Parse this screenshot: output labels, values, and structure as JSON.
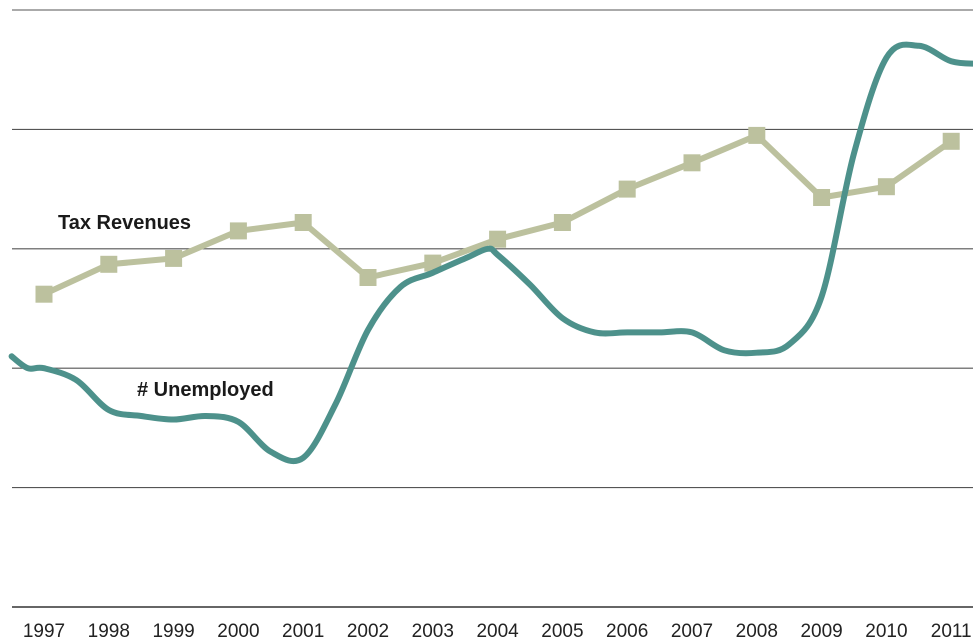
{
  "chart_data": {
    "type": "line",
    "title": "",
    "xlabel": "",
    "ylabel": "",
    "categories": [
      "1997",
      "1998",
      "1999",
      "2000",
      "2001",
      "2002",
      "2003",
      "2004",
      "2005",
      "2006",
      "2007",
      "2008",
      "2009",
      "2010",
      "2011"
    ],
    "xlim": [
      1996.5,
      2011.4
    ],
    "ylim": [
      0,
      5
    ],
    "grid": true,
    "ytick_labels_visible": false,
    "series": [
      {
        "name": "Tax Revenues",
        "color": "#bcc19e",
        "marker": "square",
        "interpolation": "linear",
        "points": [
          [
            1997,
            2.62
          ],
          [
            1998,
            2.87
          ],
          [
            1999,
            2.92
          ],
          [
            2000,
            3.15
          ],
          [
            2001,
            3.22
          ],
          [
            2002,
            2.76
          ],
          [
            2003,
            2.88
          ],
          [
            2004,
            3.08
          ],
          [
            2005,
            3.22
          ],
          [
            2006,
            3.5
          ],
          [
            2007,
            3.72
          ],
          [
            2008,
            3.95
          ],
          [
            2009,
            3.43
          ],
          [
            2010,
            3.52
          ],
          [
            2011,
            3.9
          ]
        ]
      },
      {
        "name": "# Unemployed",
        "color": "#4d918b",
        "marker": "none",
        "interpolation": "smooth",
        "points": [
          [
            1996.5,
            2.1
          ],
          [
            1996.75,
            2.0
          ],
          [
            1997,
            2.0
          ],
          [
            1997.5,
            1.9
          ],
          [
            1998,
            1.65
          ],
          [
            1998.5,
            1.6
          ],
          [
            1999,
            1.57
          ],
          [
            1999.5,
            1.6
          ],
          [
            2000,
            1.55
          ],
          [
            2000.5,
            1.3
          ],
          [
            2001,
            1.25
          ],
          [
            2001.5,
            1.7
          ],
          [
            2002,
            2.32
          ],
          [
            2002.5,
            2.68
          ],
          [
            2003,
            2.8
          ],
          [
            2003.5,
            2.92
          ],
          [
            2003.85,
            3.0
          ],
          [
            2004,
            2.95
          ],
          [
            2004.5,
            2.7
          ],
          [
            2005,
            2.42
          ],
          [
            2005.5,
            2.3
          ],
          [
            2006,
            2.3
          ],
          [
            2006.5,
            2.3
          ],
          [
            2007,
            2.3
          ],
          [
            2007.5,
            2.15
          ],
          [
            2008,
            2.13
          ],
          [
            2008.5,
            2.2
          ],
          [
            2009,
            2.6
          ],
          [
            2009.5,
            3.8
          ],
          [
            2010,
            4.6
          ],
          [
            2010.5,
            4.7
          ],
          [
            2011,
            4.57
          ],
          [
            2011.4,
            4.55
          ]
        ]
      }
    ]
  }
}
